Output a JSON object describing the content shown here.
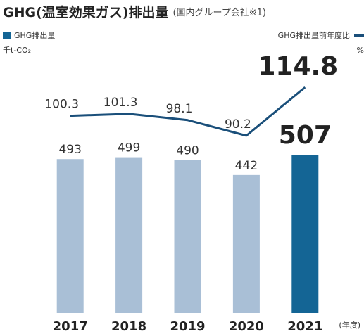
{
  "chart_data": {
    "type": "bar_line",
    "title": "GHG(温室効果ガス)排出量",
    "subtitle": "(国内グループ会社※1)",
    "ylabel": "千t-CO₂",
    "y2label": "%",
    "xlabel": "(年度)",
    "categories": [
      "2017",
      "2018",
      "2019",
      "2020",
      "2021"
    ],
    "series": [
      {
        "name": "GHG排出量",
        "color": "#a9bfd6",
        "highlight_color": "#146595",
        "values": [
          493,
          499,
          490,
          442,
          507
        ]
      },
      {
        "name": "GHG排出量前年度比",
        "color": "#1a4f7a",
        "axis": "y2",
        "values": [
          100.3,
          101.3,
          98.1,
          90.2,
          114.8
        ]
      }
    ],
    "ylim": [
      0,
      800
    ],
    "y2lim": [
      0,
      127
    ]
  }
}
